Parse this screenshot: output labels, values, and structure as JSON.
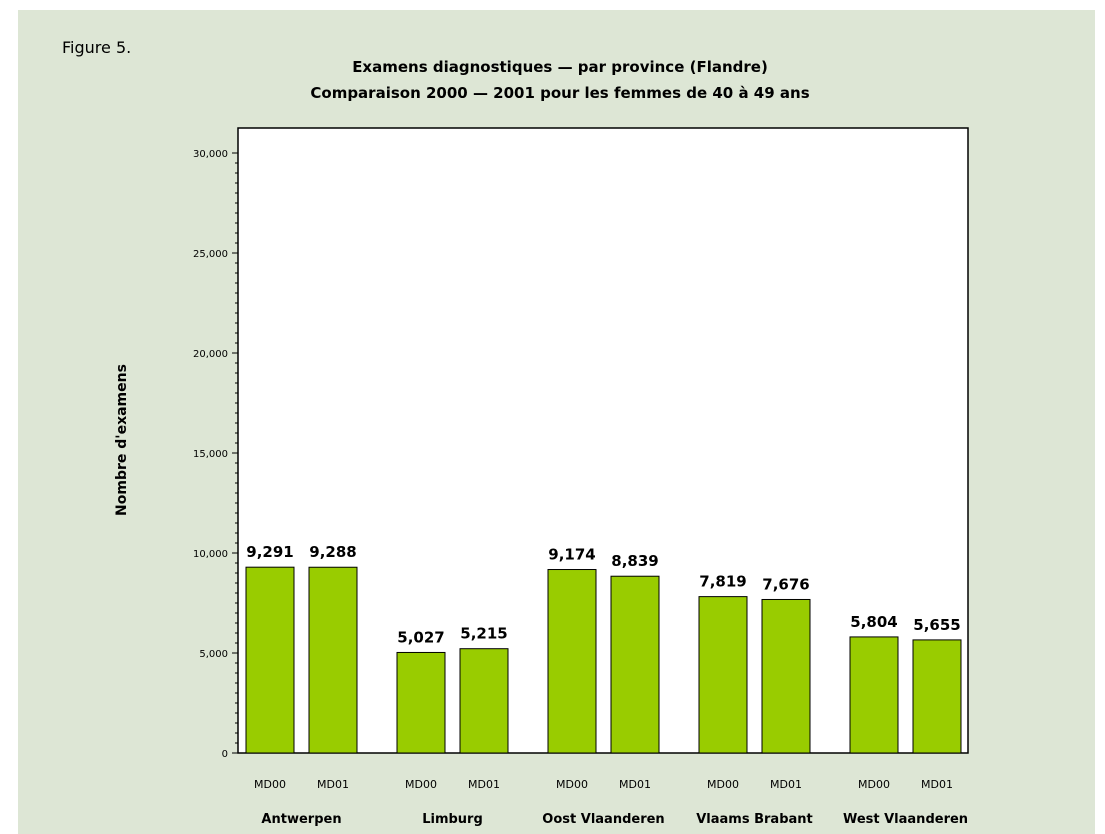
{
  "figure_label": "Figure 5.",
  "chart_data": {
    "type": "bar",
    "title": "Examens diagnostiques — par province (Flandre)",
    "subtitle": "Comparaison 2000 — 2001 pour les femmes de 40 à 49 ans",
    "ylabel": "Nombre d'examens",
    "ylim": [
      0,
      30000
    ],
    "yticks": [
      0,
      5000,
      10000,
      15000,
      20000,
      25000,
      30000
    ],
    "ytick_labels": [
      "0",
      "5,000",
      "10,000",
      "15,000",
      "20,000",
      "25,000",
      "30,000"
    ],
    "groups": [
      {
        "name": "Antwerpen",
        "bars": [
          {
            "label": "MD00",
            "value": 9291,
            "value_label": "9,291"
          },
          {
            "label": "MD01",
            "value": 9288,
            "value_label": "9,288"
          }
        ]
      },
      {
        "name": "Limburg",
        "bars": [
          {
            "label": "MD00",
            "value": 5027,
            "value_label": "5,027"
          },
          {
            "label": "MD01",
            "value": 5215,
            "value_label": "5,215"
          }
        ]
      },
      {
        "name": "Oost Vlaanderen",
        "bars": [
          {
            "label": "MD00",
            "value": 9174,
            "value_label": "9,174"
          },
          {
            "label": "MD01",
            "value": 8839,
            "value_label": "8,839"
          }
        ]
      },
      {
        "name": "Vlaams Brabant",
        "bars": [
          {
            "label": "MD00",
            "value": 7819,
            "value_label": "7,819"
          },
          {
            "label": "MD01",
            "value": 7676,
            "value_label": "7,676"
          }
        ]
      },
      {
        "name": "West Vlaanderen",
        "bars": [
          {
            "label": "MD00",
            "value": 5804,
            "value_label": "5,804"
          },
          {
            "label": "MD01",
            "value": 5655,
            "value_label": "5,655"
          }
        ]
      }
    ],
    "bar_color": "#99cc00",
    "grid": false,
    "legend": "none"
  }
}
